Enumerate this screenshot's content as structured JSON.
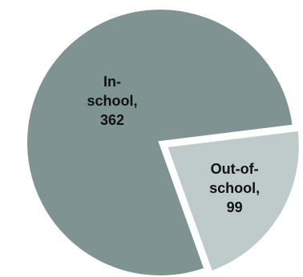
{
  "chart_data": {
    "type": "pie",
    "title": "",
    "slices": [
      {
        "label_lines": [
          "In-",
          "school,",
          "362"
        ],
        "category": "In-school",
        "value": 362,
        "color": "#7f9393"
      },
      {
        "label_lines": [
          "Out-of-",
          "school,",
          "99"
        ],
        "category": "Out-of-school",
        "value": 99,
        "color": "#bfcaca"
      }
    ],
    "exploded_slice": "Out-of-school",
    "slice_border_color": "#ffffff",
    "legend": "none"
  }
}
